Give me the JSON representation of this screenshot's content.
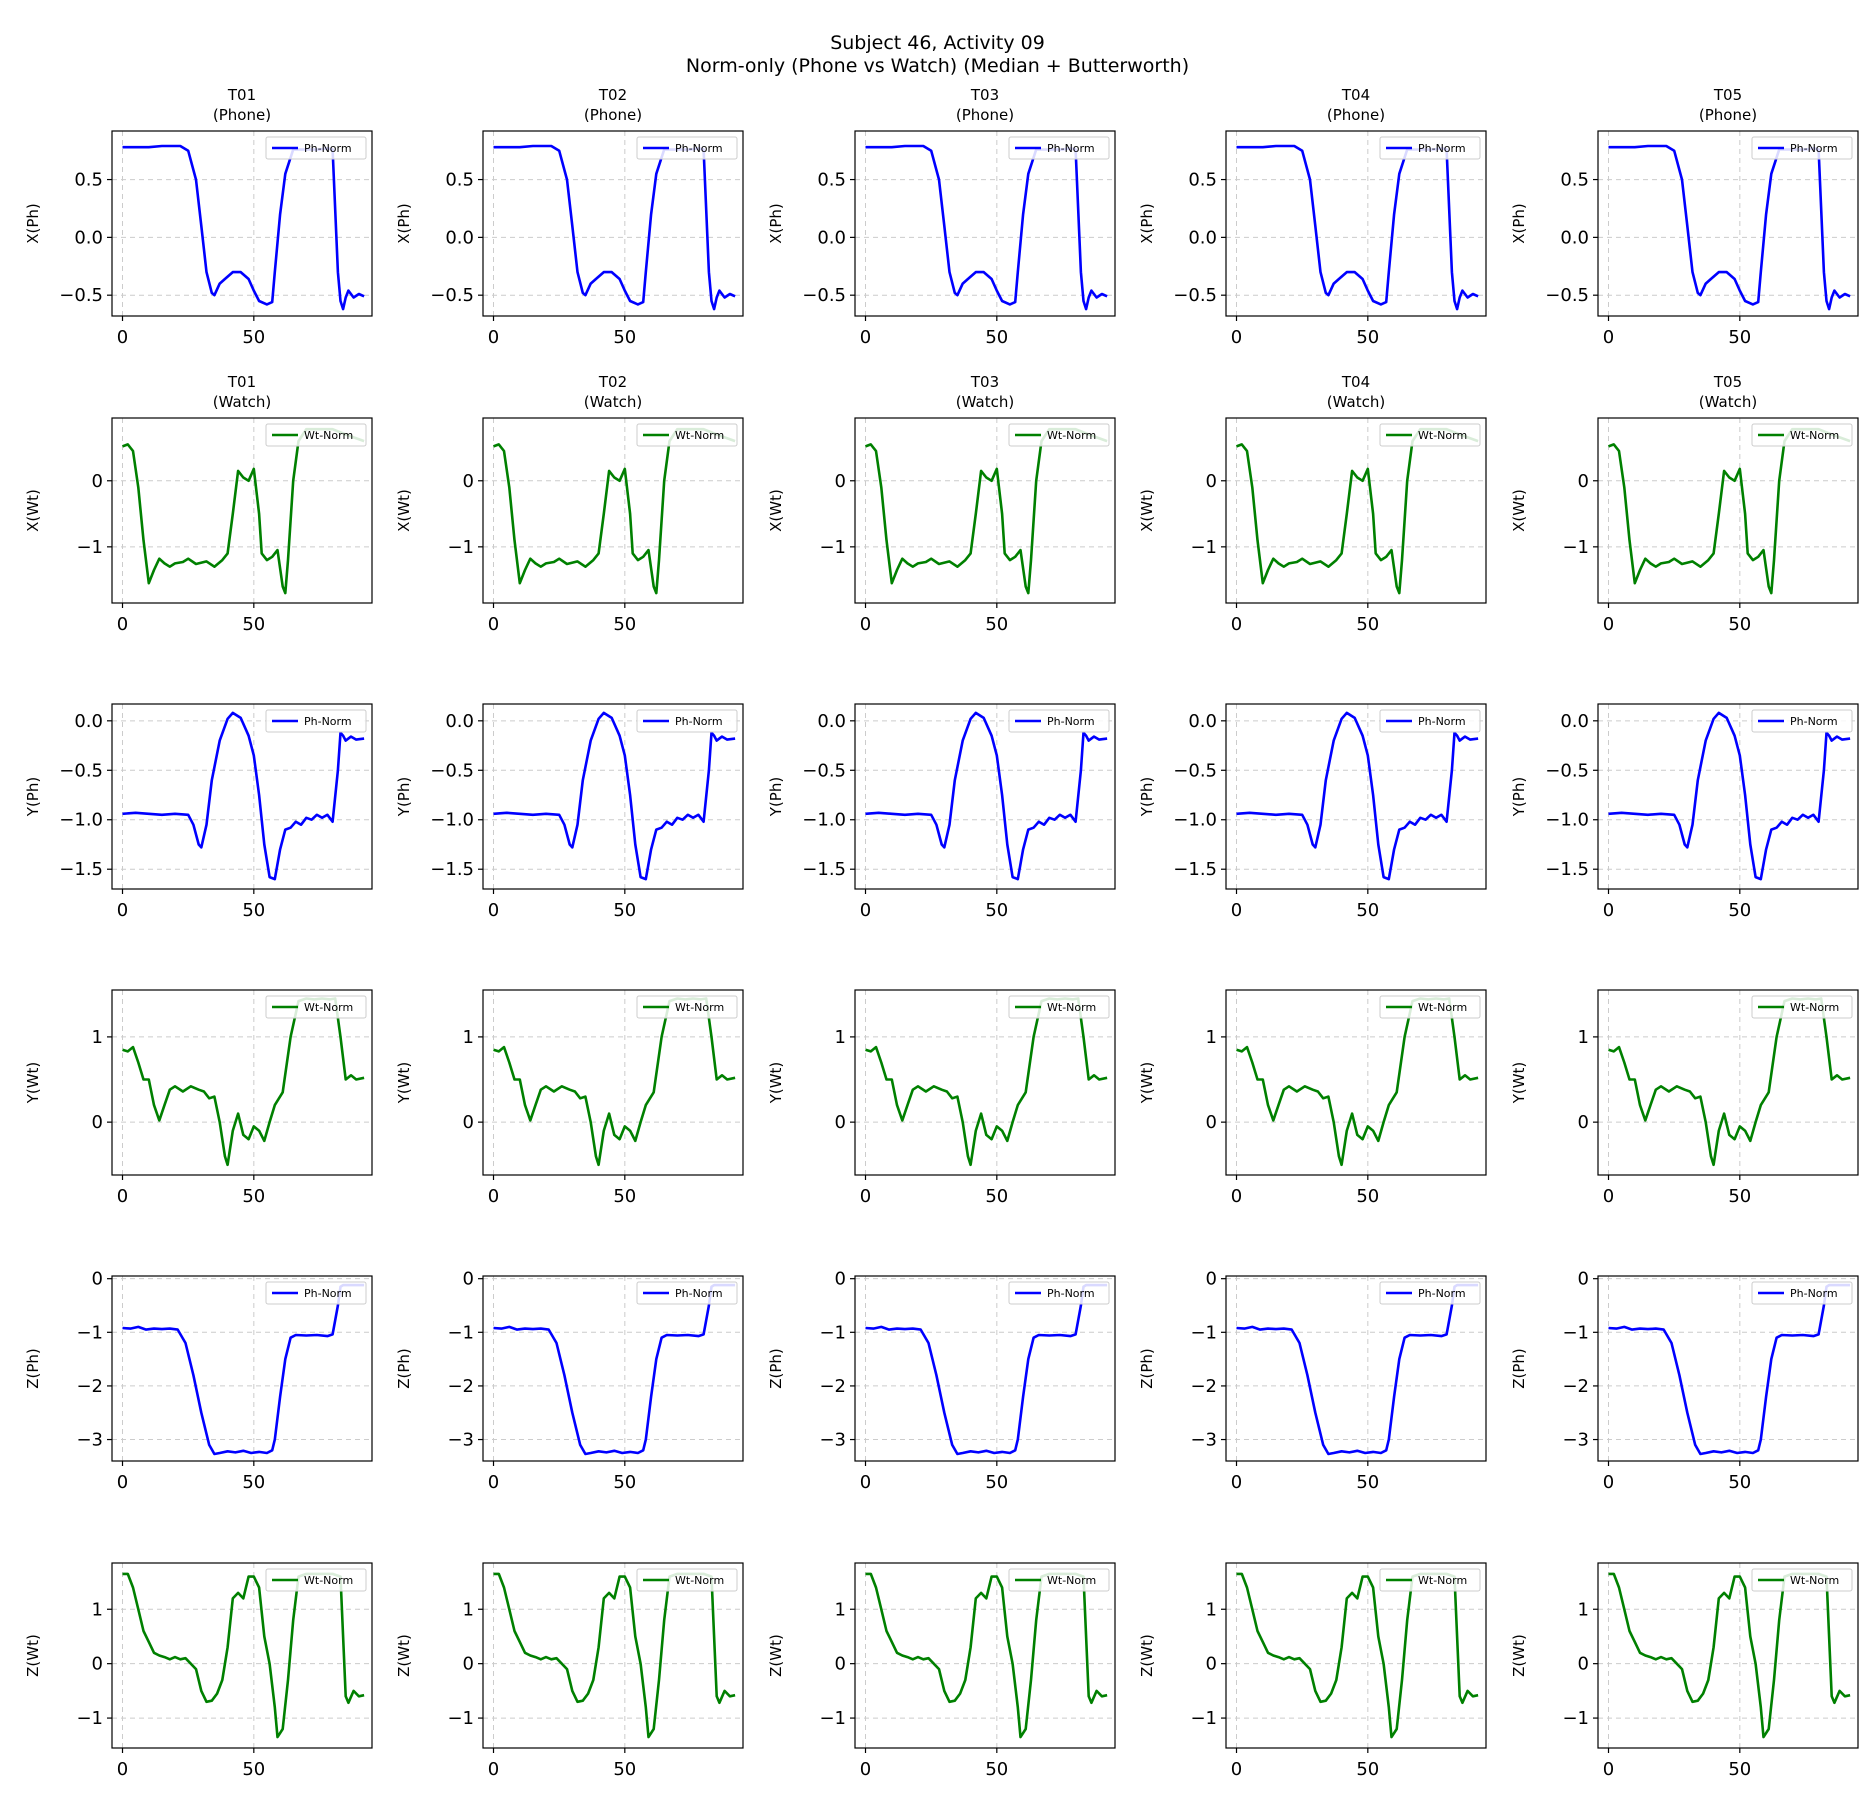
{
  "figure": {
    "title_line1": "Subject 46, Activity 09",
    "title_line2": "Norm-only (Phone vs Watch) (Median + Butterworth)"
  },
  "colors": {
    "phone": "#0000ff",
    "watch": "#008000",
    "grid": "#cccccc"
  },
  "column_titles": {
    "phone": [
      "T01\n(Phone)",
      "T02\n(Phone)",
      "T03\n(Phone)",
      "T04\n(Phone)",
      "T05\n(Phone)"
    ],
    "watch": [
      "T01\n(Watch)",
      "T02\n(Watch)",
      "T03\n(Watch)",
      "T04\n(Watch)",
      "T05\n(Watch)"
    ]
  },
  "chart_data": [
    {
      "type": "line",
      "row": 0,
      "ylabel": "X(Ph)",
      "legend": "Ph-Norm",
      "device": "phone",
      "xlim": [
        -4,
        95
      ],
      "ylim": [
        -0.68,
        0.92
      ],
      "xticks": [
        0,
        50
      ],
      "yticks": [
        0.5,
        0.0,
        -0.5
      ],
      "ytick_labels": [
        "0.5",
        "0.0",
        "−0.5"
      ],
      "x": [
        0,
        5,
        10,
        15,
        20,
        22,
        25,
        28,
        30,
        32,
        34,
        35,
        37,
        39,
        42,
        45,
        48,
        50,
        52,
        55,
        57,
        58,
        60,
        62,
        65,
        70,
        75,
        78,
        80,
        82,
        83,
        84,
        85,
        86,
        88,
        90,
        92
      ],
      "y": [
        0.78,
        0.78,
        0.78,
        0.79,
        0.79,
        0.79,
        0.75,
        0.5,
        0.1,
        -0.3,
        -0.48,
        -0.5,
        -0.4,
        -0.36,
        -0.3,
        -0.3,
        -0.36,
        -0.46,
        -0.55,
        -0.58,
        -0.56,
        -0.3,
        0.2,
        0.55,
        0.76,
        0.76,
        0.76,
        0.77,
        0.76,
        -0.3,
        -0.55,
        -0.62,
        -0.52,
        -0.46,
        -0.52,
        -0.49,
        -0.51
      ]
    },
    {
      "type": "line",
      "row": 1,
      "ylabel": "X(Wt)",
      "legend": "Wt-Norm",
      "device": "watch",
      "xlim": [
        -4,
        95
      ],
      "ylim": [
        -1.85,
        0.95
      ],
      "xticks": [
        0,
        50
      ],
      "yticks": [
        0,
        -1
      ],
      "ytick_labels": [
        "0",
        "−1"
      ],
      "x": [
        0,
        2,
        4,
        6,
        8,
        10,
        12,
        14,
        16,
        18,
        20,
        23,
        25,
        28,
        32,
        35,
        38,
        40,
        42,
        44,
        46,
        48,
        50,
        52,
        53,
        55,
        57,
        59,
        61,
        62,
        63,
        65,
        67,
        70,
        75,
        80,
        85,
        92
      ],
      "y": [
        0.52,
        0.55,
        0.45,
        -0.1,
        -0.9,
        -1.55,
        -1.35,
        -1.18,
        -1.25,
        -1.3,
        -1.25,
        -1.23,
        -1.18,
        -1.26,
        -1.22,
        -1.3,
        -1.2,
        -1.1,
        -0.5,
        0.15,
        0.05,
        0.0,
        0.18,
        -0.5,
        -1.1,
        -1.2,
        -1.15,
        -1.05,
        -1.6,
        -1.7,
        -1.2,
        0.0,
        0.6,
        0.78,
        0.78,
        0.78,
        0.7,
        0.6
      ]
    },
    {
      "type": "line",
      "row": 2,
      "ylabel": "Y(Ph)",
      "legend": "Ph-Norm",
      "device": "phone",
      "xlim": [
        -4,
        95
      ],
      "ylim": [
        -1.7,
        0.17
      ],
      "xticks": [
        0,
        50
      ],
      "yticks": [
        0.0,
        -0.5,
        -1.0,
        -1.5
      ],
      "ytick_labels": [
        "0.0",
        "−0.5",
        "−1.0",
        "−1.5"
      ],
      "x": [
        0,
        5,
        10,
        15,
        20,
        25,
        27,
        29,
        30,
        32,
        34,
        37,
        40,
        42,
        45,
        48,
        50,
        52,
        54,
        56,
        58,
        60,
        62,
        64,
        66,
        68,
        70,
        72,
        74,
        76,
        78,
        80,
        82,
        83,
        84,
        85,
        87,
        89,
        92
      ],
      "y": [
        -0.94,
        -0.93,
        -0.94,
        -0.95,
        -0.94,
        -0.95,
        -1.05,
        -1.25,
        -1.28,
        -1.05,
        -0.6,
        -0.2,
        0.02,
        0.08,
        0.03,
        -0.15,
        -0.35,
        -0.75,
        -1.25,
        -1.58,
        -1.6,
        -1.3,
        -1.1,
        -1.08,
        -1.02,
        -1.05,
        -0.98,
        -1.0,
        -0.95,
        -0.98,
        -0.95,
        -1.02,
        -0.5,
        -0.12,
        -0.15,
        -0.2,
        -0.16,
        -0.19,
        -0.18
      ]
    },
    {
      "type": "line",
      "row": 3,
      "ylabel": "Y(Wt)",
      "legend": "Wt-Norm",
      "device": "watch",
      "xlim": [
        -4,
        95
      ],
      "ylim": [
        -0.62,
        1.55
      ],
      "xticks": [
        0,
        50
      ],
      "yticks": [
        1,
        0
      ],
      "ytick_labels": [
        "1",
        "0"
      ],
      "x": [
        0,
        2,
        4,
        6,
        8,
        10,
        12,
        14,
        16,
        18,
        20,
        23,
        26,
        29,
        31,
        33,
        35,
        37,
        39,
        40,
        42,
        44,
        46,
        48,
        50,
        52,
        54,
        56,
        58,
        61,
        64,
        67,
        70,
        73,
        76,
        79,
        81,
        83,
        85,
        87,
        89,
        92
      ],
      "y": [
        0.85,
        0.83,
        0.88,
        0.7,
        0.5,
        0.5,
        0.2,
        0.02,
        0.2,
        0.38,
        0.42,
        0.36,
        0.42,
        0.38,
        0.36,
        0.28,
        0.3,
        0.0,
        -0.4,
        -0.5,
        -0.1,
        0.1,
        -0.15,
        -0.2,
        -0.05,
        -0.1,
        -0.22,
        0.0,
        0.2,
        0.35,
        1.0,
        1.42,
        1.45,
        1.44,
        1.45,
        1.44,
        1.45,
        1.0,
        0.5,
        0.55,
        0.5,
        0.52
      ]
    },
    {
      "type": "line",
      "row": 4,
      "ylabel": "Z(Ph)",
      "legend": "Ph-Norm",
      "device": "phone",
      "xlim": [
        -4,
        95
      ],
      "ylim": [
        -3.4,
        0.05
      ],
      "xticks": [
        0,
        50
      ],
      "yticks": [
        0,
        -1,
        -2,
        -3
      ],
      "ytick_labels": [
        "0",
        "−1",
        "−2",
        "−3"
      ],
      "x": [
        0,
        3,
        6,
        9,
        12,
        15,
        18,
        21,
        24,
        27,
        30,
        33,
        35,
        37,
        40,
        43,
        46,
        49,
        52,
        55,
        57,
        58,
        60,
        62,
        64,
        66,
        70,
        74,
        78,
        80,
        82,
        83,
        84,
        86,
        88,
        90,
        92
      ],
      "y": [
        -0.92,
        -0.93,
        -0.9,
        -0.95,
        -0.93,
        -0.94,
        -0.93,
        -0.95,
        -1.2,
        -1.8,
        -2.5,
        -3.1,
        -3.27,
        -3.25,
        -3.22,
        -3.24,
        -3.21,
        -3.25,
        -3.23,
        -3.25,
        -3.2,
        -3.0,
        -2.2,
        -1.5,
        -1.1,
        -1.05,
        -1.06,
        -1.05,
        -1.07,
        -1.04,
        -0.5,
        -0.15,
        -0.12,
        -0.12,
        -0.12,
        -0.12,
        -0.12
      ]
    },
    {
      "type": "line",
      "row": 5,
      "ylabel": "Z(Wt)",
      "legend": "Wt-Norm",
      "device": "watch",
      "xlim": [
        -4,
        95
      ],
      "ylim": [
        -1.55,
        1.85
      ],
      "xticks": [
        0,
        50
      ],
      "yticks": [
        1,
        0,
        -1
      ],
      "ytick_labels": [
        "1",
        "0",
        "−1"
      ],
      "x": [
        0,
        2,
        4,
        6,
        8,
        10,
        12,
        14,
        16,
        18,
        20,
        22,
        24,
        26,
        28,
        30,
        32,
        34,
        36,
        38,
        40,
        42,
        44,
        46,
        48,
        50,
        52,
        54,
        56,
        58,
        59,
        61,
        63,
        65,
        67,
        70,
        75,
        80,
        83,
        85,
        86,
        88,
        90,
        92
      ],
      "y": [
        1.65,
        1.65,
        1.4,
        1.0,
        0.6,
        0.4,
        0.2,
        0.15,
        0.12,
        0.08,
        0.12,
        0.08,
        0.1,
        0.0,
        -0.1,
        -0.5,
        -0.7,
        -0.68,
        -0.55,
        -0.3,
        0.3,
        1.2,
        1.3,
        1.2,
        1.6,
        1.6,
        1.4,
        0.5,
        0.0,
        -0.8,
        -1.35,
        -1.2,
        -0.3,
        0.8,
        1.6,
        1.65,
        1.65,
        1.65,
        1.6,
        -0.6,
        -0.72,
        -0.5,
        -0.6,
        -0.58
      ]
    }
  ]
}
